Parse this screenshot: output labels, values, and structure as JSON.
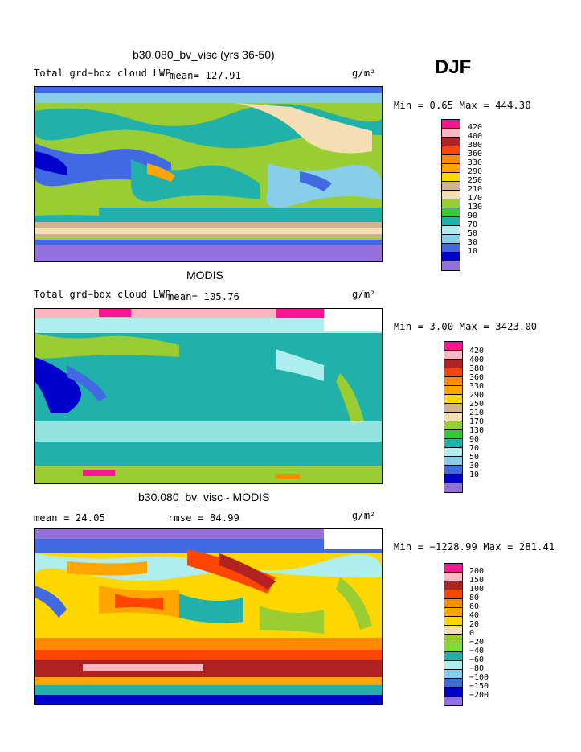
{
  "season": "DJF",
  "unit": "g/m²",
  "panels": [
    {
      "title": "b30.080_bv_visc (yrs 36-50)",
      "label": "Total grd−box cloud LWP",
      "mean_text": "mean= 127.91",
      "minmax_text": "Min =   0.65 Max = 444.30",
      "levels": [
        "420",
        "400",
        "380",
        "360",
        "330",
        "290",
        "250",
        "210",
        "170",
        "130",
        "90",
        "70",
        "50",
        "30",
        "10"
      ],
      "colors": [
        "#ff1493",
        "#ffb6c1",
        "#b22222",
        "#ff4500",
        "#ff8c00",
        "#ffa500",
        "#ffd700",
        "#d2b48c",
        "#f5deb3",
        "#9acd32",
        "#32cd32",
        "#20b2aa",
        "#afeeee",
        "#87ceeb",
        "#4169e1",
        "#0000cd",
        "#9370db"
      ]
    },
    {
      "title": "MODIS",
      "label": "Total grd−box cloud LWP",
      "mean_text": "mean= 105.76",
      "minmax_text": "Min =   3.00 Max = 3423.00",
      "levels": [
        "420",
        "400",
        "380",
        "360",
        "330",
        "290",
        "250",
        "210",
        "170",
        "130",
        "90",
        "70",
        "50",
        "30",
        "10"
      ],
      "colors": [
        "#ff1493",
        "#ffb6c1",
        "#b22222",
        "#ff4500",
        "#ff8c00",
        "#ffa500",
        "#ffd700",
        "#d2b48c",
        "#f5deb3",
        "#9acd32",
        "#32cd32",
        "#20b2aa",
        "#afeeee",
        "#87ceeb",
        "#4169e1",
        "#0000cd",
        "#9370db"
      ]
    },
    {
      "title": "b30.080_bv_visc - MODIS",
      "label": "mean =   24.05",
      "mean_text": "rmse =   84.99",
      "minmax_text": "Min = −1228.99 Max = 281.41",
      "levels": [
        "200",
        "150",
        "100",
        "80",
        "60",
        "40",
        "20",
        "0",
        "−20",
        "−40",
        "−60",
        "−80",
        "−100",
        "−150",
        "−200"
      ],
      "colors": [
        "#ff1493",
        "#ffb6c1",
        "#b22222",
        "#ff4500",
        "#ff8c00",
        "#ffa500",
        "#ffd700",
        "#f5deb3",
        "#9acd32",
        "#7fdc3a",
        "#20b2aa",
        "#afeeee",
        "#87ceeb",
        "#4169e1",
        "#0000cd",
        "#9370db"
      ]
    }
  ]
}
